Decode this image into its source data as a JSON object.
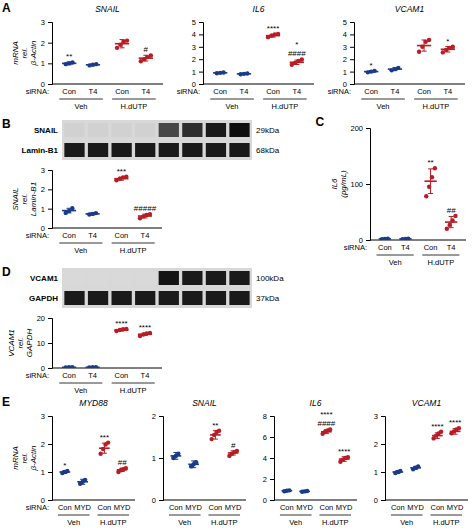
{
  "chart_data": [
    {
      "type": "dotplot",
      "title": "SNAIL",
      "ylabel": "mRNA\nrel.\nβ-Actin",
      "xlabel": "siRNA:",
      "categories": [
        "Con",
        "T4",
        "Con",
        "T4"
      ],
      "groups": [
        "Veh",
        "H.dUTP"
      ],
      "values": [
        1.0,
        0.93,
        1.95,
        1.25
      ],
      "errors": [
        0.07,
        0.04,
        0.2,
        0.14
      ],
      "dots": [
        [
          0.96,
          1.0,
          1.04
        ],
        [
          0.9,
          0.93,
          0.96
        ],
        [
          1.75,
          1.9,
          2.05,
          2.1
        ],
        [
          1.1,
          1.2,
          1.3,
          1.38
        ]
      ],
      "colors": [
        "#1a3a8a",
        "#1a3a8a",
        "#b81c24",
        "#b81c24"
      ],
      "ylim": [
        0,
        3
      ],
      "yticks": [
        0,
        1,
        2,
        3
      ],
      "annotations": [
        {
          "text": "A"
        },
        {
          "text": "**",
          "category": 0
        },
        {
          "text": "#",
          "category": 3
        }
      ]
    },
    {
      "type": "dotplot",
      "title": "IL6",
      "xlabel": "siRNA:",
      "categories": [
        "Con",
        "T4",
        "Con",
        "T4"
      ],
      "groups": [
        "Veh",
        "H.dUTP"
      ],
      "values": [
        0.9,
        0.82,
        3.9,
        1.75
      ],
      "errors": [
        0.04,
        0.04,
        0.12,
        0.18
      ],
      "dots": [
        [
          0.87,
          0.9,
          0.93
        ],
        [
          0.79,
          0.82,
          0.85
        ],
        [
          3.78,
          3.9,
          4.0,
          4.04
        ],
        [
          1.55,
          1.7,
          1.85,
          1.98
        ]
      ],
      "colors": [
        "#1a3a8a",
        "#1a3a8a",
        "#b81c24",
        "#b81c24"
      ],
      "ylim": [
        0,
        5
      ],
      "yticks": [
        0,
        1,
        2,
        3,
        4,
        5
      ],
      "annotations": [
        {
          "text": "****",
          "category": 2
        },
        {
          "text": "*",
          "category": 3
        },
        {
          "text": "####",
          "category": 3
        }
      ]
    },
    {
      "type": "dotplot",
      "title": "VCAM1",
      "xlabel": "siRNA:",
      "categories": [
        "Con",
        "T4",
        "Con",
        "T4"
      ],
      "groups": [
        "Veh",
        "H.dUTP"
      ],
      "values": [
        1.0,
        1.2,
        3.1,
        2.8
      ],
      "errors": [
        0.08,
        0.12,
        0.45,
        0.22
      ],
      "dots": [
        [
          0.94,
          1.0,
          1.06
        ],
        [
          1.1,
          1.2,
          1.3
        ],
        [
          2.6,
          3.0,
          3.4,
          3.55
        ],
        [
          2.55,
          2.75,
          2.9,
          3.0
        ]
      ],
      "colors": [
        "#1a3a8a",
        "#1a3a8a",
        "#b81c24",
        "#b81c24"
      ],
      "ylim": [
        0,
        5
      ],
      "yticks": [
        0,
        1,
        2,
        3,
        4,
        5
      ],
      "annotations": [
        {
          "text": "*",
          "category": 0
        },
        {
          "text": "*",
          "category": 3
        }
      ]
    },
    {
      "type": "blot",
      "annotations": [
        {
          "text": "B"
        }
      ],
      "series": [
        {
          "name": "SNAIL",
          "annotation": "29kDa",
          "colors": [
            "#d1d1d1",
            "#d1d1d1",
            "#d1d1d1",
            "#d1d1d1",
            "#474747",
            "#2e2e2e",
            "#1a1a1a",
            "#0f0f0f"
          ]
        },
        {
          "name": "Lamin-B1",
          "annotation": "68kDa",
          "colors": [
            "#1a1a1a",
            "#1a1a1a",
            "#1a1a1a",
            "#1a1a1a",
            "#1a1a1a",
            "#1a1a1a",
            "#1a1a1a",
            "#1a1a1a"
          ]
        }
      ]
    },
    {
      "type": "dotplot",
      "ylabel": "SNAIL\nrel.\nLamin-B1",
      "xlabel": "siRNA:",
      "categories": [
        "Con",
        "T4",
        "Con",
        "T4"
      ],
      "groups": [
        "Veh",
        "H.dUTP"
      ],
      "values": [
        0.9,
        0.73,
        2.55,
        0.62
      ],
      "errors": [
        0.12,
        0.05,
        0.08,
        0.1
      ],
      "dots": [
        [
          0.78,
          0.88,
          1.02
        ],
        [
          0.7,
          0.73,
          0.77
        ],
        [
          2.47,
          2.55,
          2.62,
          2.65
        ],
        [
          0.5,
          0.6,
          0.67,
          0.72
        ]
      ],
      "colors": [
        "#1a3a8a",
        "#1a3a8a",
        "#b81c24",
        "#b81c24"
      ],
      "ylim": [
        0,
        3
      ],
      "yticks": [
        0,
        1,
        2,
        3
      ],
      "annotations": [
        {
          "text": "***",
          "category": 2
        },
        {
          "text": "#####",
          "category": 3
        }
      ]
    },
    {
      "type": "dotplot",
      "ylabel": "IL6\n(pg/mL)",
      "xlabel": "siRNA:",
      "categories": [
        "Con",
        "T4",
        "Con",
        "T4"
      ],
      "groups": [
        "Veh",
        "H.dUTP"
      ],
      "values": [
        2.0,
        2.0,
        105,
        32
      ],
      "errors": [
        0.5,
        0.5,
        22,
        10
      ],
      "dots": [
        [
          1.5,
          2.0,
          2.5
        ],
        [
          1.5,
          2.0,
          2.5
        ],
        [
          78,
          95,
          112,
          128
        ],
        [
          20,
          27,
          35,
          43
        ]
      ],
      "colors": [
        "#1a3a8a",
        "#1a3a8a",
        "#b81c24",
        "#b81c24"
      ],
      "ylim": [
        0,
        200
      ],
      "yticks": [
        0,
        100,
        200
      ],
      "annotations": [
        {
          "text": "C"
        },
        {
          "text": "**",
          "category": 2
        },
        {
          "text": "##",
          "category": 3
        }
      ]
    },
    {
      "type": "blot",
      "annotations": [
        {
          "text": "D"
        }
      ],
      "series": [
        {
          "name": "VCAM1",
          "annotation": "100kDa",
          "colors": [
            "#d9d9d9",
            "#d9d9d9",
            "#d9d9d9",
            "#d9d9d9",
            "#141414",
            "#1a1a1a",
            "#1a1a1a",
            "#1a1a1a"
          ]
        },
        {
          "name": "GAPDH",
          "annotation": "37kDa",
          "colors": [
            "#1a1a1a",
            "#1a1a1a",
            "#1a1a1a",
            "#1a1a1a",
            "#1a1a1a",
            "#1a1a1a",
            "#1a1a1a",
            "#1a1a1a"
          ]
        }
      ]
    },
    {
      "type": "dotplot",
      "ylabel": "VCAM1\nrel.\nGAPDH",
      "xlabel": "siRNA:",
      "categories": [
        "Con",
        "T4",
        "Con",
        "T4"
      ],
      "groups": [
        "Veh",
        "H.dUTP"
      ],
      "values": [
        0.28,
        0.28,
        15.2,
        13.5
      ],
      "errors": [
        0.08,
        0.08,
        0.4,
        0.5
      ],
      "dots": [
        [
          0.2,
          0.28,
          0.36
        ],
        [
          0.2,
          0.28,
          0.36
        ],
        [
          14.8,
          15.2,
          15.5,
          15.6
        ],
        [
          12.8,
          13.4,
          13.8,
          14.0
        ]
      ],
      "colors": [
        "#1a3a8a",
        "#1a3a8a",
        "#b81c24",
        "#b81c24"
      ],
      "ylim": [
        0,
        20
      ],
      "yticks": [
        0,
        10,
        20
      ],
      "annotations": [
        {
          "text": "****",
          "category": 2
        },
        {
          "text": "****",
          "category": 3
        }
      ]
    },
    {
      "type": "dotplot",
      "title": "MYD88",
      "ylabel": "mRNA\nrel.\nβ-Actin",
      "xlabel": "siRNA:",
      "categories": [
        "Con",
        "MYD",
        "Con",
        "MYD"
      ],
      "groups": [
        "Veh",
        "H.dUTP"
      ],
      "values": [
        1.0,
        0.65,
        1.85,
        1.08
      ],
      "errors": [
        0.05,
        0.09,
        0.18,
        0.06
      ],
      "dots": [
        [
          0.96,
          1.0,
          1.04
        ],
        [
          0.58,
          0.65,
          0.72
        ],
        [
          1.65,
          1.82,
          1.98,
          2.05
        ],
        [
          1.0,
          1.06,
          1.1,
          1.14
        ]
      ],
      "colors": [
        "#1a3a8a",
        "#1a3a8a",
        "#b81c24",
        "#b81c24"
      ],
      "ylim": [
        0,
        3
      ],
      "yticks": [
        0,
        1,
        2,
        3
      ],
      "annotations": [
        {
          "text": "E"
        },
        {
          "text": "*",
          "category": 0
        },
        {
          "text": "***",
          "category": 2
        },
        {
          "text": "##",
          "category": 3
        }
      ]
    },
    {
      "type": "dotplot",
      "title": "SNAIL",
      "categories": [
        "Con",
        "MYD",
        "Con",
        "MYD"
      ],
      "groups": [
        "Veh",
        "H.dUTP"
      ],
      "values": [
        1.05,
        0.85,
        1.55,
        1.12
      ],
      "errors": [
        0.08,
        0.08,
        0.1,
        0.05
      ],
      "dots": [
        [
          1.0,
          1.05,
          1.1
        ],
        [
          0.8,
          0.85,
          0.9
        ],
        [
          1.45,
          1.55,
          1.62,
          1.65
        ],
        [
          1.05,
          1.1,
          1.14,
          1.17
        ]
      ],
      "colors": [
        "#1a3a8a",
        "#1a3a8a",
        "#b81c24",
        "#b81c24"
      ],
      "ylim": [
        0,
        2
      ],
      "yticks": [
        0,
        1,
        2
      ],
      "annotations": [
        {
          "text": "**",
          "category": 2
        },
        {
          "text": "#",
          "category": 3
        }
      ]
    },
    {
      "type": "dotplot",
      "title": "IL6",
      "categories": [
        "Con",
        "MYD",
        "Con",
        "MYD"
      ],
      "groups": [
        "Veh",
        "H.dUTP"
      ],
      "values": [
        0.88,
        0.82,
        6.5,
        3.9
      ],
      "errors": [
        0.05,
        0.04,
        0.18,
        0.22
      ],
      "dots": [
        [
          0.84,
          0.88,
          0.92
        ],
        [
          0.79,
          0.82,
          0.86
        ],
        [
          6.3,
          6.5,
          6.62,
          6.72
        ],
        [
          3.65,
          3.85,
          4.0,
          4.08
        ]
      ],
      "colors": [
        "#1a3a8a",
        "#1a3a8a",
        "#b81c24",
        "#b81c24"
      ],
      "ylim": [
        0,
        8
      ],
      "yticks": [
        0,
        2,
        4,
        6,
        8
      ],
      "annotations": [
        {
          "text": "****",
          "category": 2
        },
        {
          "text": "####",
          "category": 2
        },
        {
          "text": "****",
          "category": 3
        }
      ]
    },
    {
      "type": "dotplot",
      "title": "VCAM1",
      "categories": [
        "Con",
        "MYD",
        "Con",
        "MYD"
      ],
      "groups": [
        "Veh",
        "H.dUTP"
      ],
      "values": [
        1.0,
        1.15,
        2.3,
        2.45
      ],
      "errors": [
        0.05,
        0.05,
        0.1,
        0.1
      ],
      "dots": [
        [
          0.96,
          1.0,
          1.04
        ],
        [
          1.1,
          1.15,
          1.2
        ],
        [
          2.2,
          2.3,
          2.38,
          2.44
        ],
        [
          2.38,
          2.45,
          2.52,
          2.56
        ]
      ],
      "colors": [
        "#1a3a8a",
        "#1a3a8a",
        "#b81c24",
        "#b81c24"
      ],
      "ylim": [
        0,
        3
      ],
      "yticks": [
        0,
        1,
        2,
        3
      ],
      "annotations": [
        {
          "text": "****",
          "category": 2
        },
        {
          "text": "****",
          "category": 3
        }
      ]
    }
  ]
}
